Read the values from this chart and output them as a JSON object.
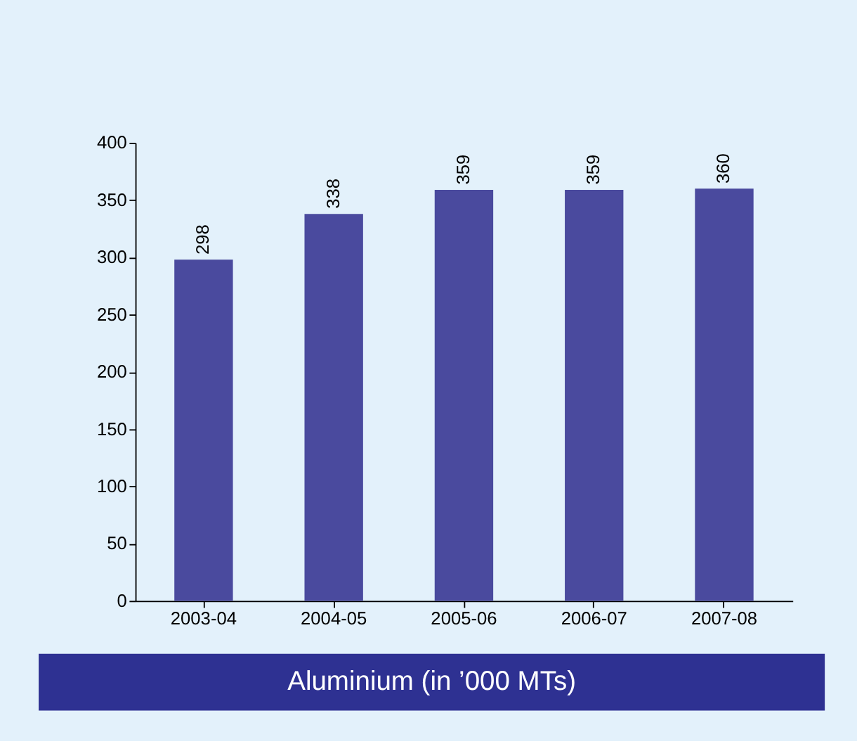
{
  "chart_data": {
    "type": "bar",
    "title": "Aluminium (in ’000 MTs)",
    "categories": [
      "2003-04",
      "2004-05",
      "2005-06",
      "2006-07",
      "2007-08"
    ],
    "values": [
      298,
      338,
      359,
      359,
      360
    ],
    "color": "#4a4a9e",
    "ylim": [
      0,
      400
    ],
    "yticks": [
      0,
      50,
      100,
      150,
      200,
      250,
      300,
      350,
      400
    ],
    "data_labels": true,
    "grid": false
  }
}
